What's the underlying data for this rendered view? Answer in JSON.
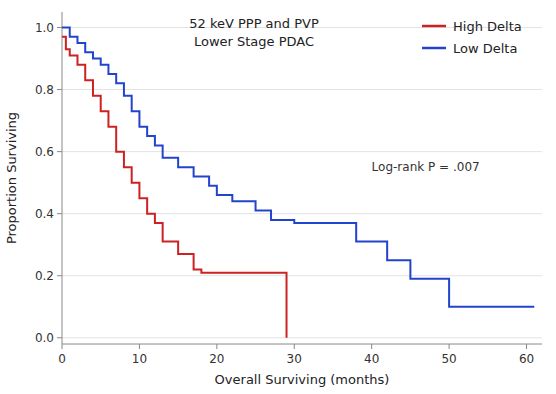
{
  "chart_data": {
    "type": "line",
    "title": "52 keV PPP and PVP",
    "subtitle": "Lower Stage PDAC",
    "x_label": "Overall Surviving (months)",
    "y_label": "Proportion Surviving",
    "xlim": [
      0,
      62
    ],
    "ylim": [
      -0.02,
      1.05
    ],
    "xticks": [
      0,
      10,
      20,
      30,
      40,
      50,
      60
    ],
    "yticks": [
      {
        "value": 0.0,
        "label": "0.0"
      },
      0.2,
      0.4,
      0.6,
      0.8,
      {
        "value": 1.0,
        "label": "1.0"
      }
    ],
    "grid": true,
    "legend": "upper right",
    "annotations": [
      "Log-rank P = .007"
    ],
    "series": [
      {
        "name": "High Delta",
        "color": "#CC2222",
        "x": [
          0,
          0.5,
          0.5,
          1,
          1,
          2,
          2,
          3,
          3,
          4,
          4,
          5,
          5,
          6,
          6,
          7,
          7,
          8,
          8,
          9,
          9,
          10,
          10,
          11,
          11,
          12,
          12,
          13,
          13,
          15,
          15,
          17,
          17,
          18,
          18,
          19,
          19,
          20,
          20,
          29,
          29
        ],
        "values": [
          0.97,
          0.97,
          0.93,
          0.93,
          0.91,
          0.91,
          0.88,
          0.88,
          0.83,
          0.83,
          0.78,
          0.78,
          0.73,
          0.73,
          0.68,
          0.68,
          0.6,
          0.6,
          0.55,
          0.55,
          0.5,
          0.5,
          0.45,
          0.45,
          0.4,
          0.4,
          0.37,
          0.37,
          0.31,
          0.31,
          0.27,
          0.27,
          0.22,
          0.22,
          0.21,
          0.21,
          0.21,
          0.21,
          0.21,
          0.21,
          0.0
        ]
      },
      {
        "name": "Low Delta",
        "color": "#2244CC",
        "x": [
          0,
          1,
          1,
          2,
          2,
          3,
          3,
          4,
          4,
          5,
          5,
          6,
          6,
          7,
          7,
          8,
          8,
          9,
          9,
          10,
          10,
          11,
          11,
          12,
          12,
          13,
          13,
          15,
          15,
          17,
          17,
          19,
          19,
          20,
          20,
          22,
          22,
          25,
          25,
          27,
          27,
          30,
          30,
          38,
          38,
          42,
          42,
          43,
          43,
          45,
          45,
          50,
          50,
          51,
          51,
          61
        ],
        "values": [
          1.0,
          1.0,
          0.97,
          0.97,
          0.95,
          0.95,
          0.92,
          0.92,
          0.9,
          0.9,
          0.88,
          0.88,
          0.85,
          0.85,
          0.82,
          0.82,
          0.78,
          0.78,
          0.73,
          0.73,
          0.68,
          0.68,
          0.65,
          0.65,
          0.62,
          0.62,
          0.58,
          0.58,
          0.55,
          0.55,
          0.52,
          0.52,
          0.49,
          0.49,
          0.46,
          0.46,
          0.44,
          0.44,
          0.41,
          0.41,
          0.38,
          0.38,
          0.37,
          0.37,
          0.31,
          0.31,
          0.25,
          0.25,
          0.25,
          0.25,
          0.19,
          0.19,
          0.1,
          0.1,
          0.1,
          0.1
        ]
      }
    ]
  }
}
